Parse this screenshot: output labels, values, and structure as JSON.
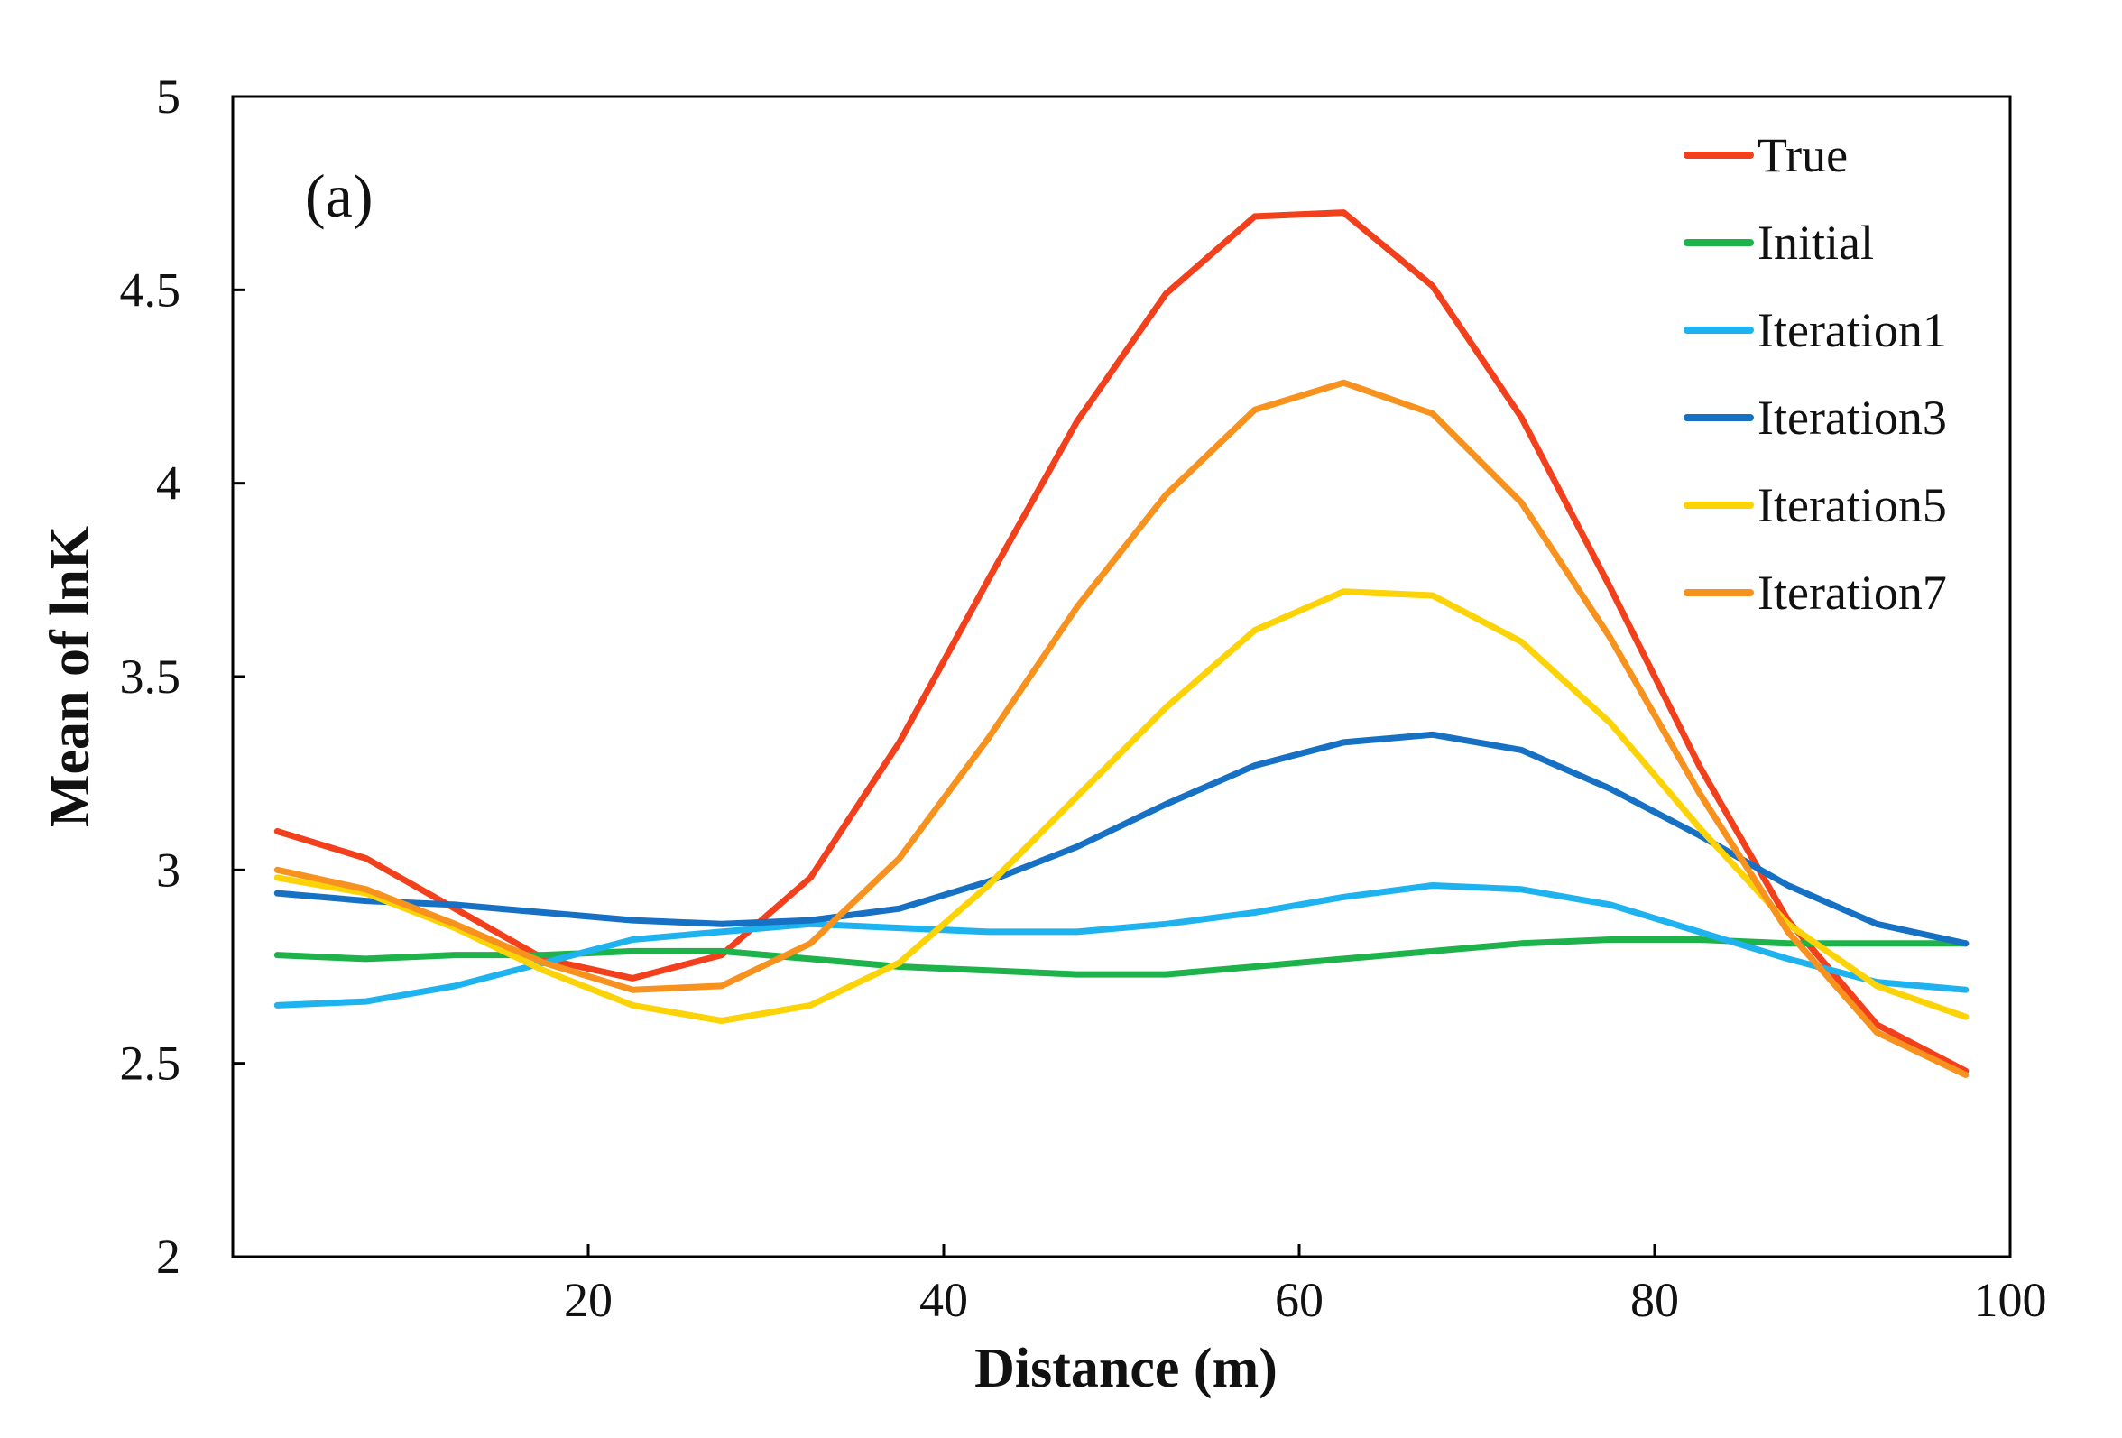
{
  "chart_data": {
    "type": "line",
    "panel_label": "(a)",
    "xlabel": "Distance (m)",
    "ylabel": "Mean of lnK",
    "xlim": [
      0,
      100
    ],
    "ylim": [
      2,
      5
    ],
    "x_ticks": [
      20,
      40,
      60,
      80,
      100
    ],
    "y_ticks": [
      2,
      2.5,
      3,
      3.5,
      4,
      4.5,
      5
    ],
    "x_tick_labels": [
      "20",
      "40",
      "60",
      "80",
      "100"
    ],
    "y_tick_labels": [
      "2",
      "2.5",
      "3",
      "3.5",
      "4",
      "4.5",
      "5"
    ],
    "grid": false,
    "legend_position": "top-right",
    "x": [
      2.5,
      7.5,
      12.5,
      17.5,
      22.5,
      27.5,
      32.5,
      37.5,
      42.5,
      47.5,
      52.5,
      57.5,
      62.5,
      67.5,
      72.5,
      77.5,
      82.5,
      87.5,
      92.5,
      97.5
    ],
    "series": [
      {
        "name": "True",
        "color": "#f2401c",
        "values": [
          3.1,
          3.03,
          2.9,
          2.77,
          2.72,
          2.78,
          2.98,
          3.33,
          3.75,
          4.16,
          4.49,
          4.69,
          4.7,
          4.51,
          4.17,
          3.73,
          3.27,
          2.87,
          2.6,
          2.48
        ]
      },
      {
        "name": "Initial",
        "color": "#1db34a",
        "values": [
          2.78,
          2.77,
          2.78,
          2.78,
          2.79,
          2.79,
          2.77,
          2.75,
          2.74,
          2.73,
          2.73,
          2.75,
          2.77,
          2.79,
          2.81,
          2.82,
          2.82,
          2.81,
          2.81,
          2.81
        ]
      },
      {
        "name": "Iteration1",
        "color": "#1eb3ee",
        "values": [
          2.65,
          2.66,
          2.7,
          2.76,
          2.82,
          2.84,
          2.86,
          2.85,
          2.84,
          2.84,
          2.86,
          2.89,
          2.93,
          2.96,
          2.95,
          2.91,
          2.84,
          2.77,
          2.71,
          2.69
        ]
      },
      {
        "name": "Iteration3",
        "color": "#1670c4",
        "values": [
          2.94,
          2.92,
          2.91,
          2.89,
          2.87,
          2.86,
          2.87,
          2.9,
          2.97,
          3.06,
          3.17,
          3.27,
          3.33,
          3.35,
          3.31,
          3.21,
          3.09,
          2.96,
          2.86,
          2.81
        ]
      },
      {
        "name": "Iteration5",
        "color": "#fbd306",
        "values": [
          2.98,
          2.94,
          2.85,
          2.74,
          2.65,
          2.61,
          2.65,
          2.76,
          2.96,
          3.19,
          3.42,
          3.62,
          3.72,
          3.71,
          3.59,
          3.38,
          3.11,
          2.86,
          2.7,
          2.62
        ]
      },
      {
        "name": "Iteration7",
        "color": "#f7921e",
        "values": [
          3.0,
          2.95,
          2.86,
          2.76,
          2.69,
          2.7,
          2.81,
          3.03,
          3.34,
          3.68,
          3.97,
          4.19,
          4.26,
          4.18,
          3.95,
          3.6,
          3.2,
          2.84,
          2.58,
          2.47
        ]
      }
    ]
  }
}
